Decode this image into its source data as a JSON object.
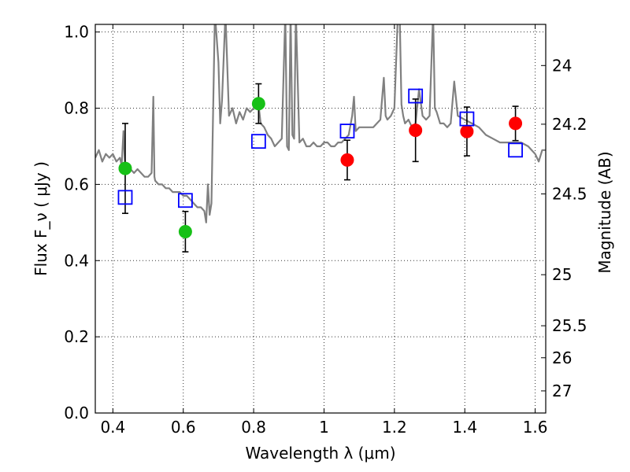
{
  "chart_data": {
    "type": "scatter",
    "xlabel": "Wavelength  λ (μm)",
    "ylabel": "Flux  F_ν  ( μJy )",
    "y2label": "Magnitude (AB)",
    "xlim": [
      0.35,
      1.63
    ],
    "ylim": [
      0.0,
      1.02
    ],
    "x_ticks": [
      0.4,
      0.6,
      0.8,
      1.0,
      1.2,
      1.4,
      1.6
    ],
    "x_tick_labels": [
      "0.4",
      "0.6",
      "0.8",
      "1",
      "1.2",
      "1.4",
      "1.6"
    ],
    "y_ticks": [
      0.0,
      0.2,
      0.4,
      0.6,
      0.8,
      1.0
    ],
    "y_tick_labels": [
      "0.0",
      "0.2",
      "0.4",
      "0.6",
      "0.8",
      "1.0"
    ],
    "y2_ticks": [
      {
        "label": "24",
        "flux": 0.912
      },
      {
        "label": "24.2",
        "flux": 0.758
      },
      {
        "label": "24.5",
        "flux": 0.575
      },
      {
        "label": "25",
        "flux": 0.363
      },
      {
        "label": "25.5",
        "flux": 0.229
      },
      {
        "label": "26",
        "flux": 0.145
      },
      {
        "label": "27",
        "flux": 0.058
      }
    ],
    "grid": true,
    "series": [
      {
        "kind": "template-spectrum",
        "color": "#808080",
        "x": [
          0.35,
          0.36,
          0.37,
          0.38,
          0.39,
          0.4,
          0.41,
          0.42,
          0.425,
          0.43,
          0.435,
          0.44,
          0.45,
          0.46,
          0.47,
          0.48,
          0.49,
          0.5,
          0.51,
          0.515,
          0.518,
          0.52,
          0.53,
          0.54,
          0.55,
          0.56,
          0.57,
          0.58,
          0.59,
          0.6,
          0.61,
          0.62,
          0.63,
          0.64,
          0.65,
          0.66,
          0.665,
          0.67,
          0.675,
          0.68,
          0.69,
          0.7,
          0.705,
          0.71,
          0.72,
          0.73,
          0.74,
          0.75,
          0.76,
          0.77,
          0.78,
          0.79,
          0.8,
          0.81,
          0.815,
          0.82,
          0.83,
          0.84,
          0.85,
          0.86,
          0.87,
          0.88,
          0.89,
          0.895,
          0.9,
          0.905,
          0.91,
          0.915,
          0.92,
          0.93,
          0.94,
          0.95,
          0.96,
          0.97,
          0.98,
          0.99,
          1.0,
          1.01,
          1.02,
          1.03,
          1.04,
          1.05,
          1.06,
          1.07,
          1.08,
          1.085,
          1.09,
          1.1,
          1.12,
          1.14,
          1.16,
          1.17,
          1.175,
          1.18,
          1.19,
          1.2,
          1.21,
          1.215,
          1.22,
          1.225,
          1.23,
          1.24,
          1.25,
          1.26,
          1.27,
          1.28,
          1.29,
          1.3,
          1.31,
          1.315,
          1.32,
          1.33,
          1.34,
          1.35,
          1.36,
          1.37,
          1.38,
          1.4,
          1.42,
          1.44,
          1.46,
          1.48,
          1.5,
          1.52,
          1.54,
          1.56,
          1.58,
          1.6,
          1.61,
          1.62,
          1.63
        ],
        "y": [
          0.67,
          0.69,
          0.66,
          0.68,
          0.67,
          0.68,
          0.66,
          0.67,
          0.65,
          0.74,
          0.64,
          0.65,
          0.64,
          0.63,
          0.64,
          0.63,
          0.62,
          0.62,
          0.63,
          0.83,
          0.62,
          0.61,
          0.6,
          0.6,
          0.59,
          0.59,
          0.58,
          0.58,
          0.58,
          0.57,
          0.57,
          0.56,
          0.55,
          0.54,
          0.54,
          0.53,
          0.5,
          0.6,
          0.52,
          0.55,
          1.05,
          0.92,
          0.76,
          0.82,
          1.05,
          0.78,
          0.8,
          0.76,
          0.79,
          0.77,
          0.8,
          0.79,
          0.8,
          0.82,
          0.8,
          0.76,
          0.75,
          0.73,
          0.72,
          0.7,
          0.71,
          0.72,
          1.05,
          0.7,
          0.69,
          1.05,
          0.73,
          0.72,
          1.05,
          0.71,
          0.72,
          0.7,
          0.7,
          0.71,
          0.7,
          0.7,
          0.71,
          0.71,
          0.7,
          0.7,
          0.71,
          0.71,
          0.72,
          0.73,
          0.78,
          0.83,
          0.74,
          0.75,
          0.75,
          0.75,
          0.77,
          0.88,
          0.78,
          0.77,
          0.78,
          0.8,
          1.05,
          1.05,
          0.81,
          0.78,
          0.76,
          0.77,
          0.75,
          0.76,
          0.85,
          0.78,
          0.77,
          0.78,
          1.05,
          0.8,
          0.79,
          0.76,
          0.76,
          0.75,
          0.76,
          0.87,
          0.78,
          0.77,
          0.76,
          0.75,
          0.73,
          0.72,
          0.71,
          0.71,
          0.71,
          0.71,
          0.7,
          0.68,
          0.66,
          0.69,
          0.69
        ]
      },
      {
        "kind": "observed-optical",
        "marker": "circle",
        "color": "#17c017",
        "points": [
          {
            "x": 0.435,
            "y": 0.642,
            "err": 0.118
          },
          {
            "x": 0.606,
            "y": 0.476,
            "err": 0.053
          },
          {
            "x": 0.814,
            "y": 0.812,
            "err": 0.052
          }
        ]
      },
      {
        "kind": "observed-nir",
        "marker": "circle",
        "color": "#ff0000",
        "points": [
          {
            "x": 1.066,
            "y": 0.664,
            "err": 0.052
          },
          {
            "x": 1.26,
            "y": 0.742,
            "err": 0.082
          },
          {
            "x": 1.406,
            "y": 0.739,
            "err": 0.064
          },
          {
            "x": 1.544,
            "y": 0.76,
            "err": 0.045
          }
        ]
      },
      {
        "kind": "model-photometry",
        "marker": "square",
        "color": "#0000ff",
        "points": [
          {
            "x": 0.435,
            "y": 0.566
          },
          {
            "x": 0.606,
            "y": 0.558
          },
          {
            "x": 0.814,
            "y": 0.713
          },
          {
            "x": 1.066,
            "y": 0.74
          },
          {
            "x": 1.26,
            "y": 0.832
          },
          {
            "x": 1.406,
            "y": 0.772
          },
          {
            "x": 1.544,
            "y": 0.69
          }
        ]
      }
    ]
  }
}
